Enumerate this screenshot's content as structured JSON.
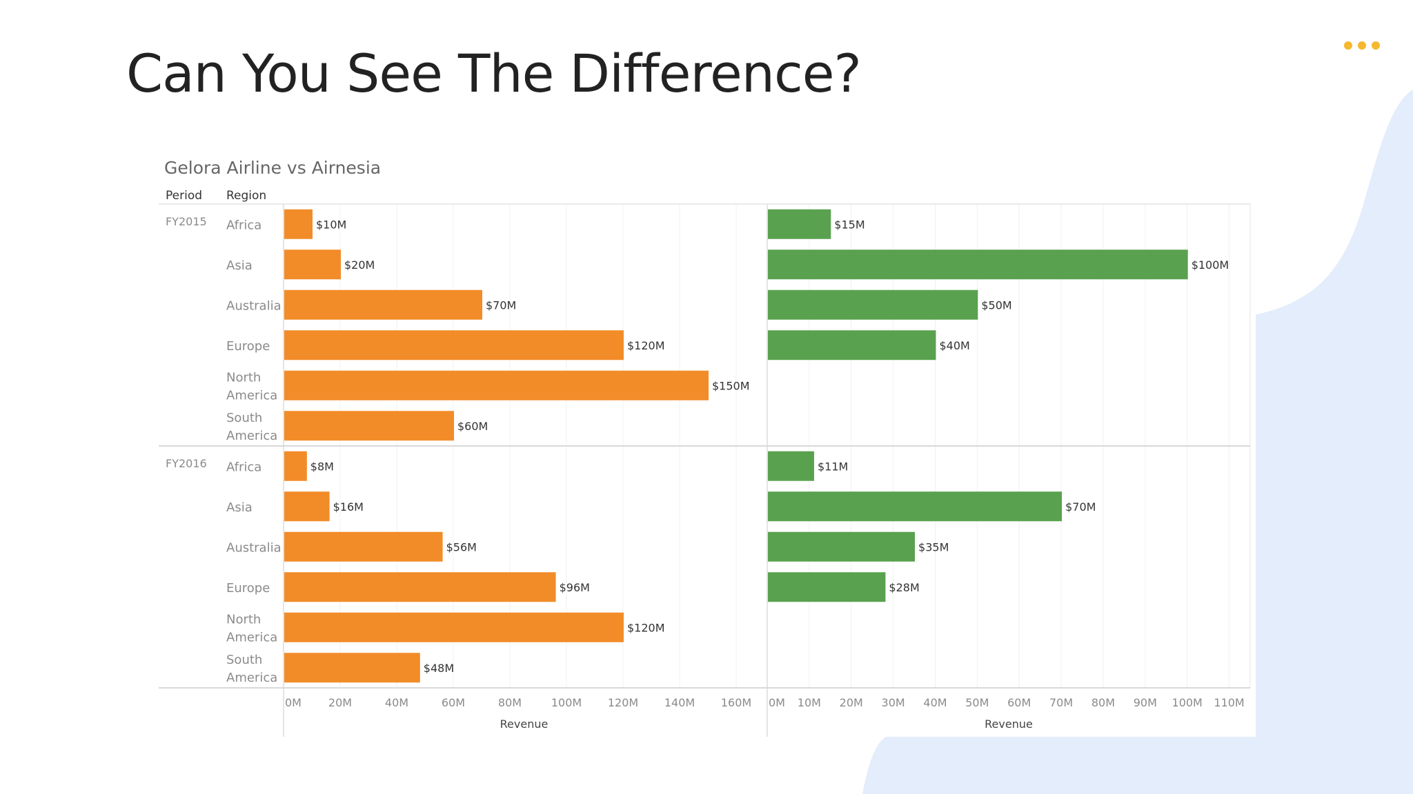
{
  "slide": {
    "title": "Can You See The Difference?",
    "accent_color": "#F5B82E",
    "blob_color": "#E3EDFB",
    "menu_icon": "more-horizontal-icon"
  },
  "chart_data": {
    "type": "bar",
    "orientation": "horizontal",
    "title": "Gelora Airline vs Airnesia",
    "row_headers": [
      "Period",
      "Region"
    ],
    "periods": [
      "FY2015",
      "FY2016"
    ],
    "regions": [
      "Africa",
      "Asia",
      "Australia",
      "Europe",
      "North America",
      "South America"
    ],
    "grid": true,
    "panels": [
      {
        "color": "#F28C28",
        "xlabel": "Revenue",
        "xlim": [
          0,
          170
        ],
        "ticks": [
          0,
          20,
          40,
          60,
          80,
          100,
          120,
          140,
          160
        ],
        "tick_labels": [
          "0M",
          "20M",
          "40M",
          "60M",
          "80M",
          "100M",
          "120M",
          "140M",
          "160M"
        ],
        "values": {
          "FY2015": [
            10,
            20,
            70,
            120,
            150,
            60
          ],
          "FY2016": [
            8,
            16,
            56,
            96,
            120,
            48
          ]
        },
        "data_labels": {
          "FY2015": [
            "$10M",
            "$20M",
            "$70M",
            "$120M",
            "$150M",
            "$60M"
          ],
          "FY2016": [
            "$8M",
            "$16M",
            "$56M",
            "$96M",
            "$120M",
            "$48M"
          ]
        }
      },
      {
        "color": "#59A14F",
        "xlabel": "Revenue",
        "xlim": [
          0,
          115
        ],
        "ticks": [
          0,
          10,
          20,
          30,
          40,
          50,
          60,
          70,
          80,
          90,
          100,
          110
        ],
        "tick_labels": [
          "0M",
          "10M",
          "20M",
          "30M",
          "40M",
          "50M",
          "60M",
          "70M",
          "80M",
          "90M",
          "100M",
          "110M"
        ],
        "values": {
          "FY2015": [
            15,
            100,
            50,
            40,
            null,
            null
          ],
          "FY2016": [
            11,
            70,
            35,
            28,
            null,
            null
          ]
        },
        "data_labels": {
          "FY2015": [
            "$15M",
            "$100M",
            "$50M",
            "$40M",
            null,
            null
          ],
          "FY2016": [
            "$11M",
            "$70M",
            "$35M",
            "$28M",
            null,
            null
          ]
        }
      }
    ]
  }
}
